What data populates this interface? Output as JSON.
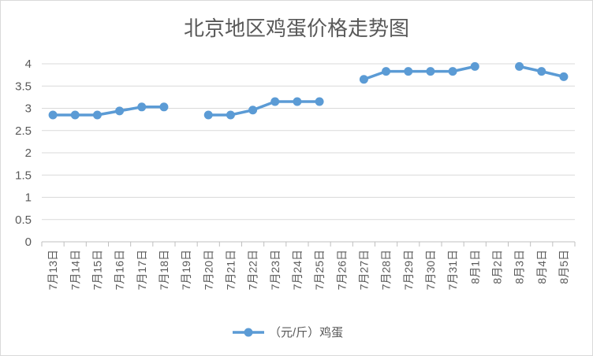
{
  "chart_data": {
    "type": "line",
    "title": "北京地区鸡蛋价格走势图",
    "categories": [
      "7月13日",
      "7月14日",
      "7月15日",
      "7月16日",
      "7月17日",
      "7月18日",
      "7月19日",
      "7月20日",
      "7月21日",
      "7月22日",
      "7月23日",
      "7月24日",
      "7月25日",
      "7月26日",
      "7月27日",
      "7月28日",
      "7月29日",
      "7月30日",
      "7月31日",
      "8月1日",
      "8月2日",
      "8月3日",
      "8月4日",
      "8月5日"
    ],
    "series": [
      {
        "name": "（元/斤）鸡蛋",
        "color": "#5b9bd5",
        "values": [
          2.85,
          2.85,
          2.85,
          2.94,
          3.03,
          3.03,
          null,
          2.85,
          2.85,
          2.96,
          3.15,
          3.15,
          3.15,
          null,
          3.65,
          3.83,
          3.83,
          3.83,
          3.83,
          3.94,
          null,
          3.94,
          3.83,
          3.71
        ]
      }
    ],
    "ylim": [
      0,
      4
    ],
    "yticks": [
      "0",
      "0.5",
      "1",
      "1.5",
      "2",
      "2.5",
      "3",
      "3.5",
      "4"
    ],
    "grid": true,
    "legend_position": "bottom"
  }
}
